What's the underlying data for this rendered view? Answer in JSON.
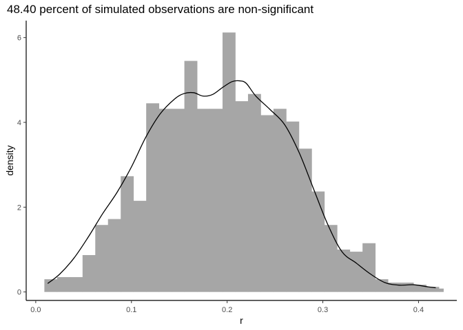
{
  "chart_data": {
    "type": "histogram",
    "title": "48.40 percent of simulated observations are non-significant",
    "xlabel": "r",
    "ylabel": "density",
    "xlim": [
      -0.01,
      0.44
    ],
    "ylim": [
      -0.2,
      6.4
    ],
    "x_ticks": [
      0.0,
      0.1,
      0.2,
      0.3,
      0.4
    ],
    "x_tick_labels": [
      "0.0",
      "0.1",
      "0.2",
      "0.3",
      "0.4"
    ],
    "y_ticks": [
      0,
      2,
      4,
      6
    ],
    "y_tick_labels": [
      "0",
      "2",
      "4",
      "6"
    ],
    "grid": false,
    "bar_color": "#a6a6a6",
    "curve_color": "#000000",
    "bins": [
      {
        "x0": 0.009,
        "x1": 0.0223,
        "density": 0.3
      },
      {
        "x0": 0.0223,
        "x1": 0.0356,
        "density": 0.35
      },
      {
        "x0": 0.0356,
        "x1": 0.0489,
        "density": 0.35
      },
      {
        "x0": 0.0489,
        "x1": 0.0622,
        "density": 0.87
      },
      {
        "x0": 0.0622,
        "x1": 0.0755,
        "density": 1.58
      },
      {
        "x0": 0.0755,
        "x1": 0.0888,
        "density": 1.72
      },
      {
        "x0": 0.0888,
        "x1": 0.1021,
        "density": 2.73
      },
      {
        "x0": 0.1021,
        "x1": 0.1154,
        "density": 2.15
      },
      {
        "x0": 0.1154,
        "x1": 0.1287,
        "density": 4.45
      },
      {
        "x0": 0.1287,
        "x1": 0.142,
        "density": 4.32
      },
      {
        "x0": 0.142,
        "x1": 0.1553,
        "density": 4.32
      },
      {
        "x0": 0.1553,
        "x1": 0.1686,
        "density": 5.45
      },
      {
        "x0": 0.1686,
        "x1": 0.1819,
        "density": 4.32
      },
      {
        "x0": 0.1819,
        "x1": 0.1952,
        "density": 4.32
      },
      {
        "x0": 0.1952,
        "x1": 0.2085,
        "density": 6.12
      },
      {
        "x0": 0.2085,
        "x1": 0.2218,
        "density": 4.5
      },
      {
        "x0": 0.2218,
        "x1": 0.2351,
        "density": 4.67
      },
      {
        "x0": 0.2351,
        "x1": 0.2484,
        "density": 4.17
      },
      {
        "x0": 0.2484,
        "x1": 0.2617,
        "density": 4.32
      },
      {
        "x0": 0.2617,
        "x1": 0.275,
        "density": 4.02
      },
      {
        "x0": 0.275,
        "x1": 0.2883,
        "density": 3.38
      },
      {
        "x0": 0.2883,
        "x1": 0.3016,
        "density": 2.37
      },
      {
        "x0": 0.3016,
        "x1": 0.3149,
        "density": 1.58
      },
      {
        "x0": 0.3149,
        "x1": 0.3282,
        "density": 1.0
      },
      {
        "x0": 0.3282,
        "x1": 0.3415,
        "density": 0.95
      },
      {
        "x0": 0.3415,
        "x1": 0.3548,
        "density": 1.15
      },
      {
        "x0": 0.3548,
        "x1": 0.3681,
        "density": 0.3
      },
      {
        "x0": 0.3681,
        "x1": 0.3814,
        "density": 0.22
      },
      {
        "x0": 0.3814,
        "x1": 0.3947,
        "density": 0.22
      },
      {
        "x0": 0.3947,
        "x1": 0.408,
        "density": 0.17
      },
      {
        "x0": 0.408,
        "x1": 0.4213,
        "density": 0.12
      },
      {
        "x0": 0.4213,
        "x1": 0.426,
        "density": 0.08
      }
    ],
    "density_curve": {
      "x": [
        0.0125,
        0.025,
        0.04,
        0.055,
        0.07,
        0.085,
        0.1,
        0.115,
        0.13,
        0.145,
        0.155,
        0.165,
        0.175,
        0.185,
        0.195,
        0.205,
        0.213,
        0.22,
        0.23,
        0.245,
        0.26,
        0.275,
        0.29,
        0.305,
        0.32,
        0.335,
        0.35,
        0.365,
        0.38,
        0.395,
        0.41,
        0.418
      ],
      "y": [
        0.2,
        0.42,
        0.8,
        1.3,
        1.85,
        2.35,
        2.95,
        3.65,
        4.2,
        4.55,
        4.68,
        4.7,
        4.62,
        4.66,
        4.82,
        4.96,
        4.98,
        4.92,
        4.62,
        4.3,
        3.95,
        3.3,
        2.45,
        1.6,
        0.95,
        0.68,
        0.42,
        0.22,
        0.16,
        0.17,
        0.12,
        0.1
      ]
    }
  }
}
